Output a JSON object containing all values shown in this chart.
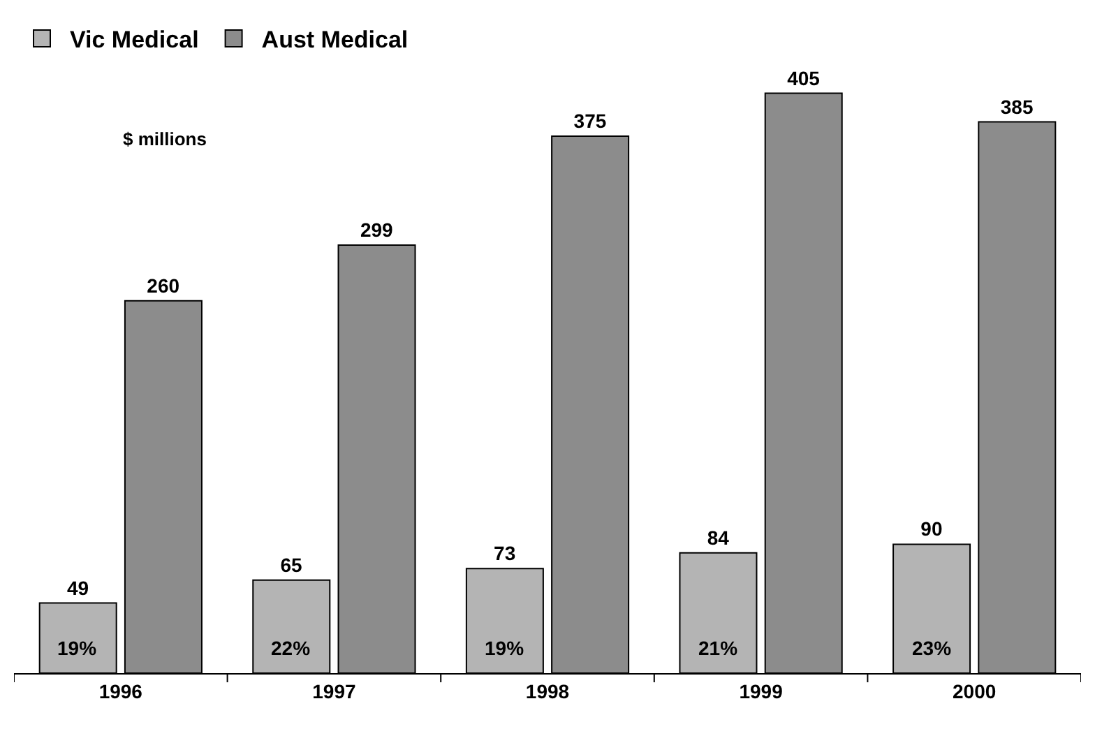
{
  "chart_data": {
    "type": "bar",
    "categories": [
      "1996",
      "1997",
      "1998",
      "1999",
      "2000"
    ],
    "series": [
      {
        "name": "Vic Medical",
        "color": "#b4b4b4",
        "values": [
          49,
          65,
          73,
          84,
          90
        ]
      },
      {
        "name": "Aust Medical",
        "color": "#8c8c8c",
        "values": [
          260,
          299,
          375,
          405,
          385
        ]
      }
    ],
    "data_labels": true,
    "legend": "top left",
    "annotations": [
      "$ millions",
      {
        "text": "19%",
        "x": "1996",
        "y": 18
      },
      {
        "text": "22%",
        "x": "1997",
        "y": 18
      },
      {
        "text": "19%",
        "x": "1998",
        "y": 18
      },
      {
        "text": "21%",
        "x": "1999",
        "y": 18
      },
      {
        "text": "23%",
        "x": "2000",
        "y": 18
      }
    ]
  }
}
